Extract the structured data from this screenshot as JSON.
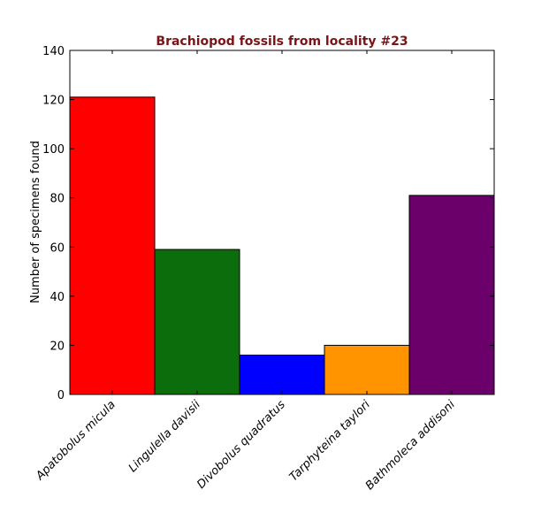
{
  "chart_data": {
    "type": "bar",
    "title": "Brachiopod fossils from locality #23",
    "title_color": "#7a1416",
    "xlabel": "",
    "ylabel": "Number of specimens found",
    "ylim": [
      0,
      140
    ],
    "yticks": [
      0,
      20,
      40,
      60,
      80,
      100,
      120,
      140
    ],
    "categories": [
      "Apatobolus micula",
      "Lingulella davisii",
      "Divobolus quadratus",
      "Tarphyteina taylori",
      "Bathmoleca addisoni"
    ],
    "values": [
      121,
      59,
      16,
      20,
      81
    ],
    "colors": [
      "#ff0000",
      "#0b6d0b",
      "#0000ff",
      "#ff9400",
      "#6b006b"
    ],
    "grid": false
  }
}
